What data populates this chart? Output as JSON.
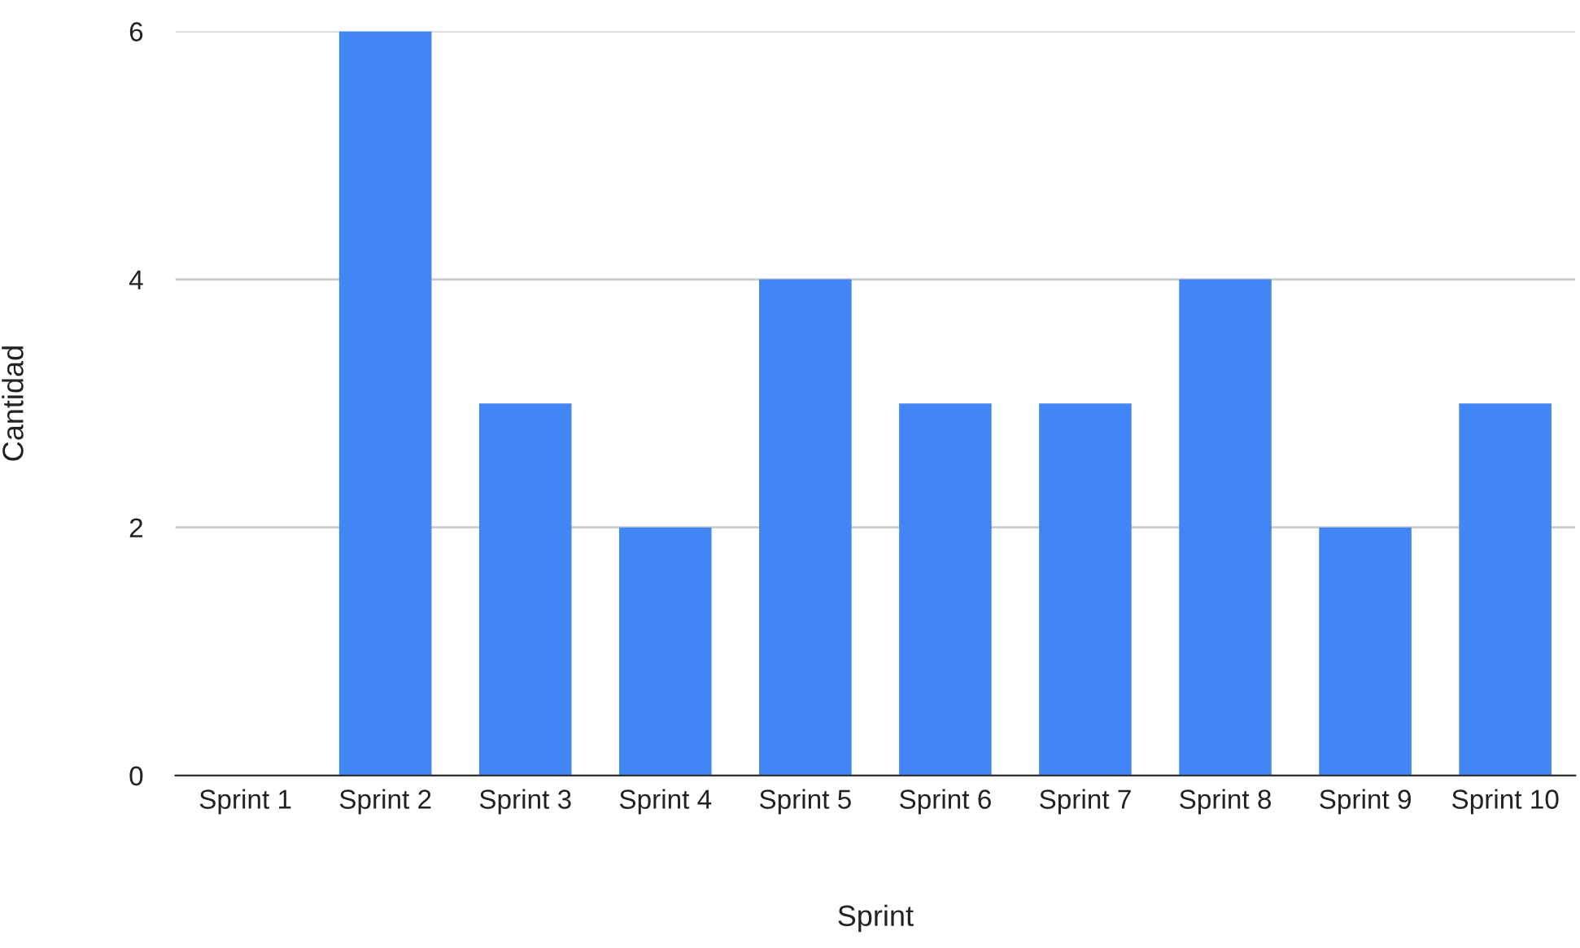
{
  "chart_data": {
    "type": "bar",
    "xlabel": "Sprint",
    "ylabel": "Cantidad",
    "categories": [
      "Sprint 1",
      "Sprint 2",
      "Sprint 3",
      "Sprint 4",
      "Sprint 5",
      "Sprint 6",
      "Sprint 7",
      "Sprint 8",
      "Sprint 9",
      "Sprint 10"
    ],
    "values": [
      0,
      6,
      3,
      2,
      4,
      3,
      3,
      4,
      2,
      3
    ],
    "color": "#4285f4",
    "ylim": [
      0,
      6
    ],
    "yticks": [
      0,
      2,
      4,
      6
    ],
    "grid": "y",
    "legend": false
  }
}
